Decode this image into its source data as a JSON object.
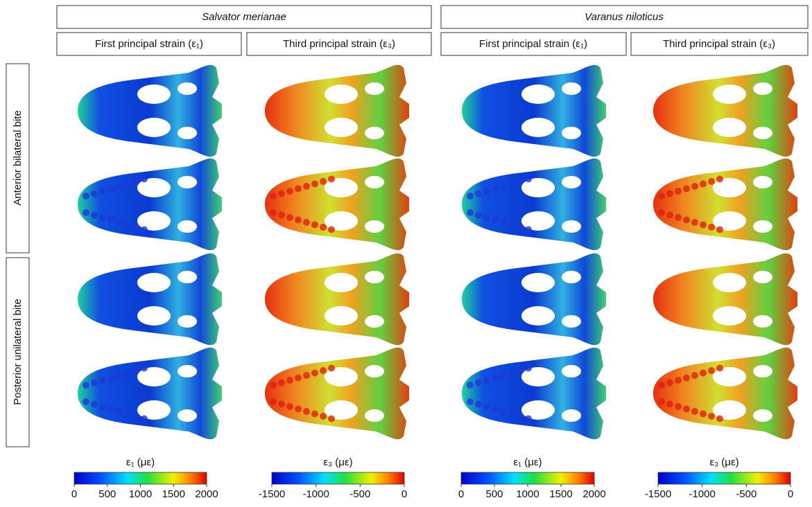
{
  "species": [
    {
      "name": "Salvator merianae",
      "columns": [
        "First principal strain (ε₁)",
        "Third principal strain (ε₃)"
      ]
    },
    {
      "name": "Varanus niloticus",
      "columns": [
        "First principal strain (ε₁)",
        "Third principal strain (ε₃)"
      ]
    }
  ],
  "rows": [
    "Anterior bilateral bite",
    "Posterior unilateral bite"
  ],
  "colorbars": [
    {
      "label": "ε₁ (με)",
      "lim": [
        0,
        2000
      ],
      "ticks": [
        0,
        500,
        1000,
        1500,
        2000
      ]
    },
    {
      "label": "ε₃ (με)",
      "lim": [
        -1500,
        0
      ],
      "ticks": [
        -1500,
        -1000,
        -500,
        0
      ]
    },
    {
      "label": "ε₁ (με)",
      "lim": [
        0,
        2000
      ],
      "ticks": [
        0,
        500,
        1000,
        1500,
        2000
      ]
    },
    {
      "label": "ε₃ (με)",
      "lim": [
        -1500,
        0
      ],
      "ticks": [
        -1500,
        -1000,
        -500,
        0
      ]
    }
  ]
}
